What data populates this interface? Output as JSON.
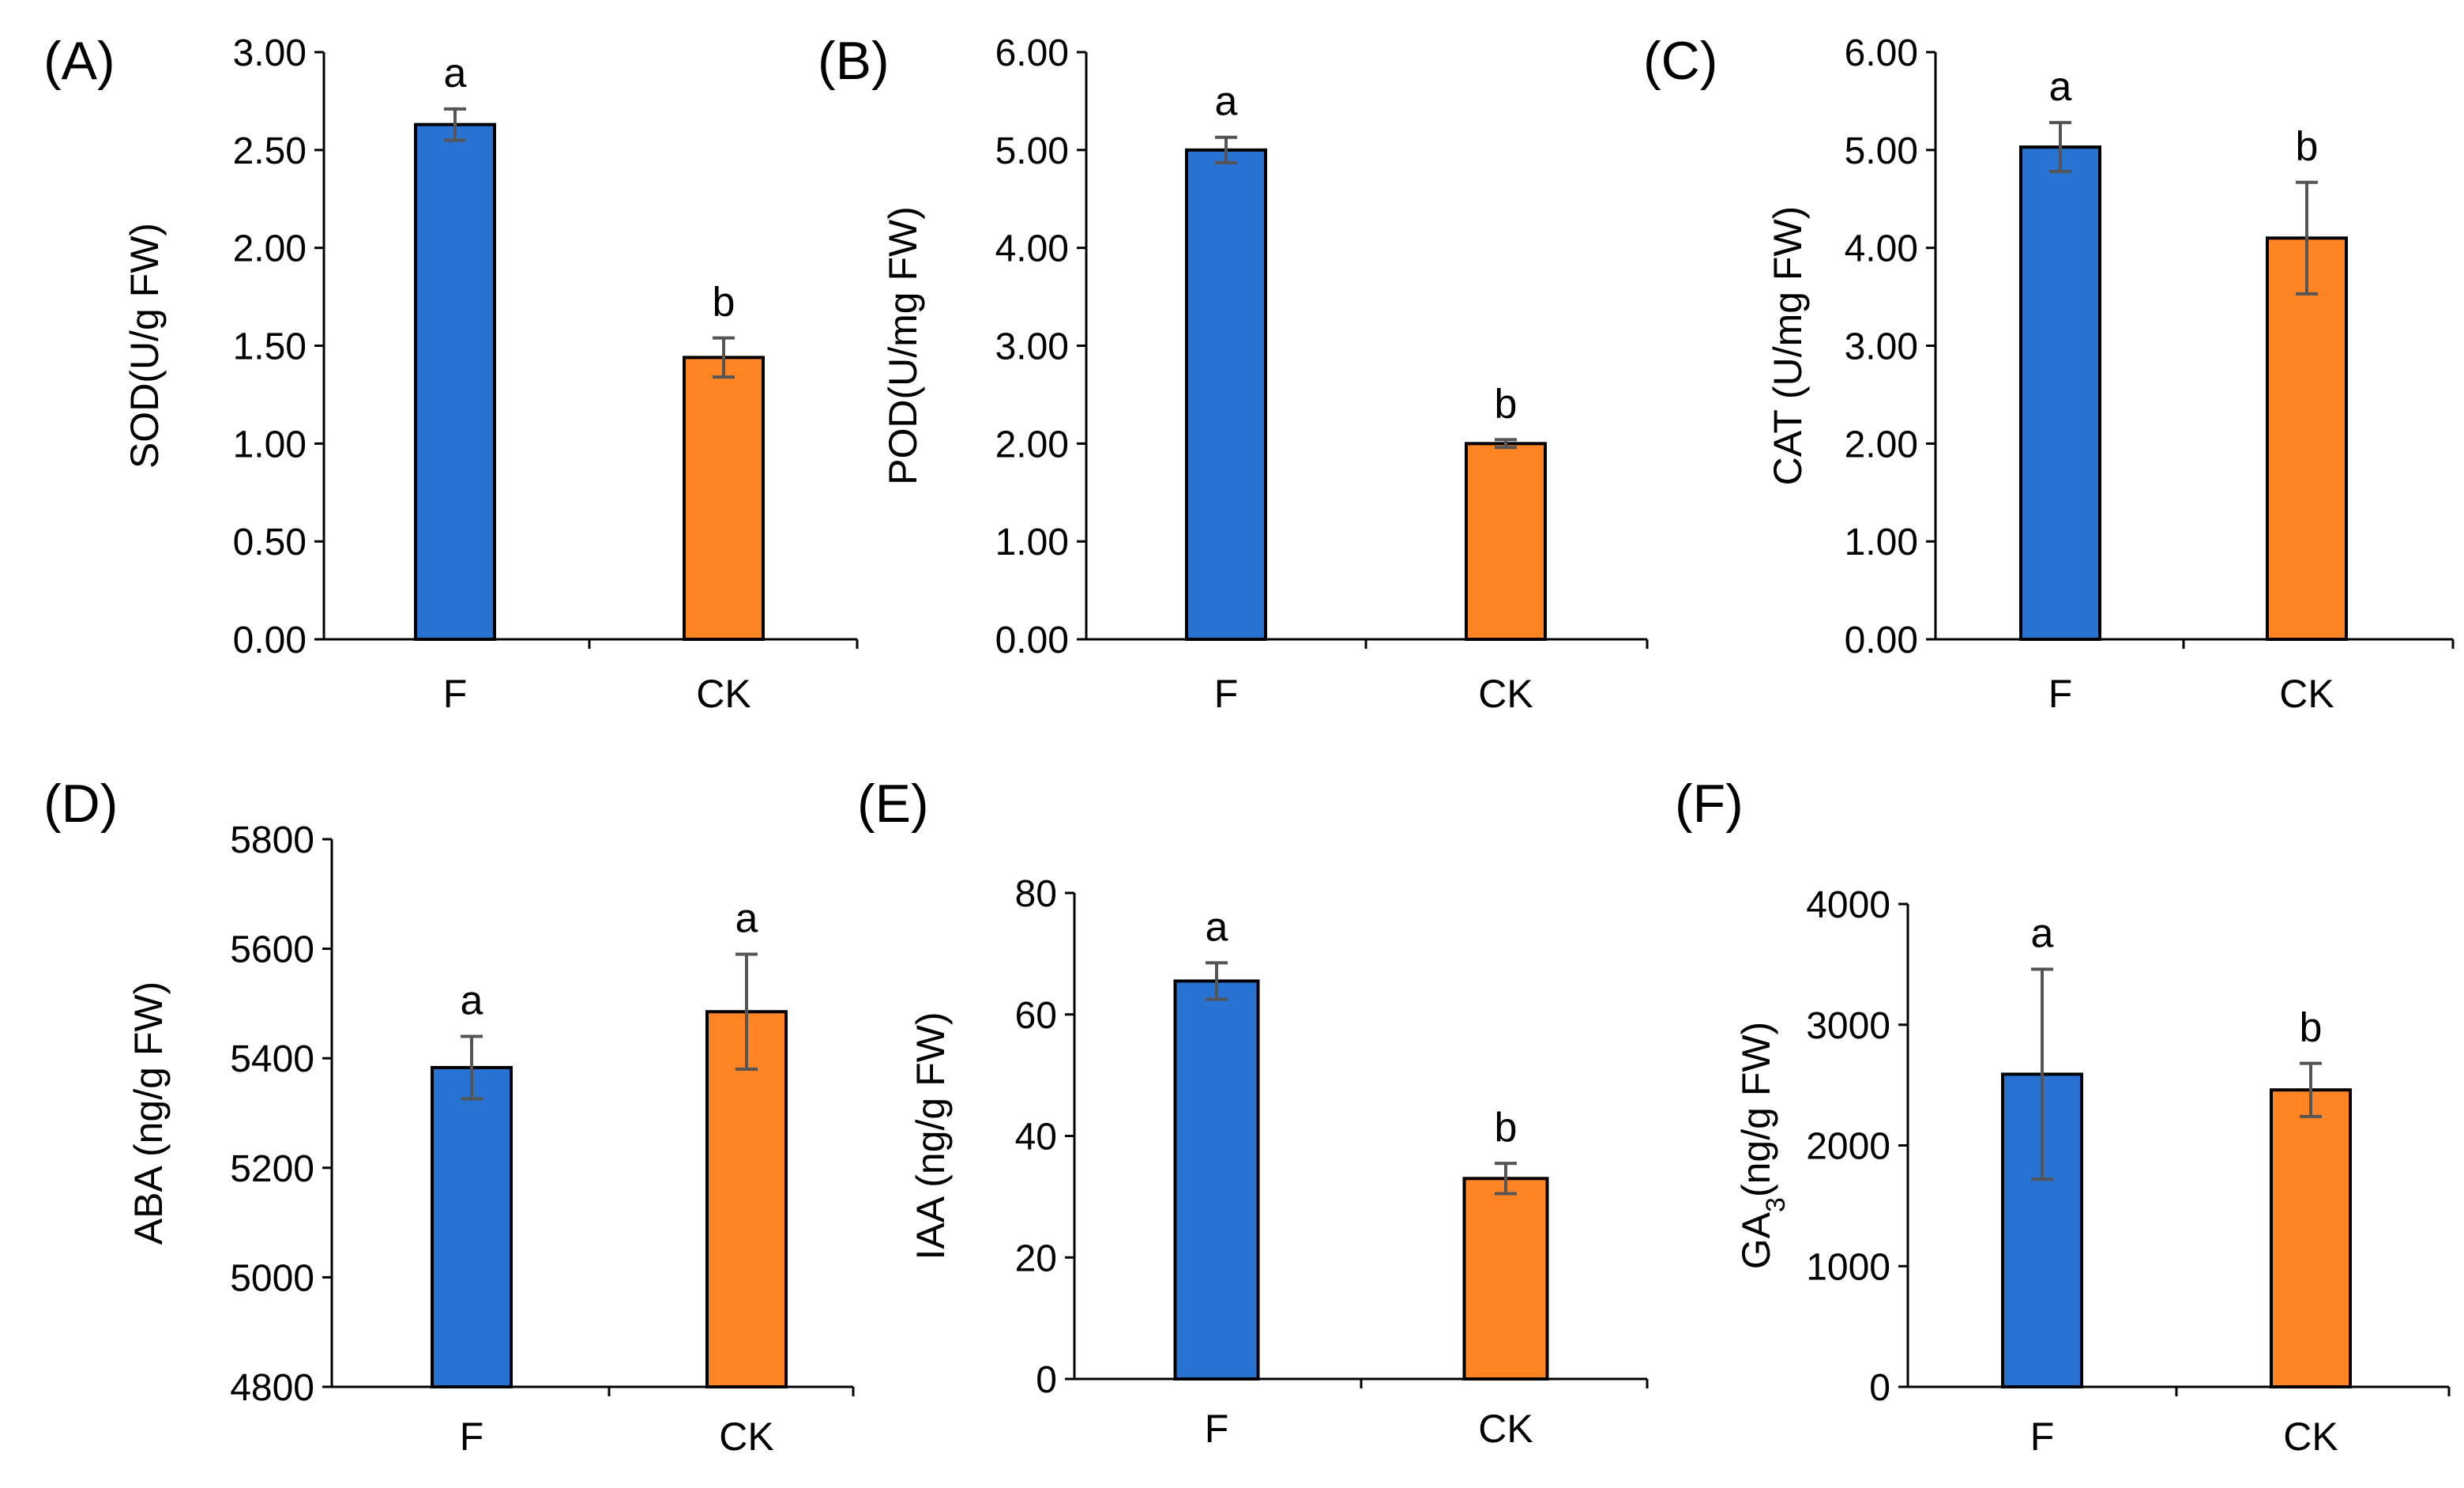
{
  "colors": {
    "F": "#2873d1",
    "CK": "#ff8423"
  },
  "chart_data": [
    {
      "panel": "(A)",
      "type": "bar",
      "ylabel": "SOD(U/g FW)",
      "ylabel_sub": "",
      "ylabel_post": "",
      "ylim": [
        0,
        3
      ],
      "yticks": [
        "0.00",
        "0.50",
        "1.00",
        "1.50",
        "2.00",
        "2.50",
        "3.00"
      ],
      "categories": [
        "F",
        "CK"
      ],
      "values": [
        2.63,
        1.44
      ],
      "errors": [
        0.08,
        0.1
      ],
      "letters": [
        "a",
        "b"
      ]
    },
    {
      "panel": "(B)",
      "type": "bar",
      "ylabel": "POD(U/mg FW)",
      "ylabel_sub": "",
      "ylabel_post": "",
      "ylim": [
        0,
        6
      ],
      "yticks": [
        "0.00",
        "1.00",
        "2.00",
        "3.00",
        "4.00",
        "5.00",
        "6.00"
      ],
      "categories": [
        "F",
        "CK"
      ],
      "values": [
        5.0,
        2.0
      ],
      "errors": [
        0.13,
        0.04
      ],
      "letters": [
        "a",
        "b"
      ]
    },
    {
      "panel": "(C)",
      "type": "bar",
      "ylabel": "CAT (U/mg FW)",
      "ylabel_sub": "",
      "ylabel_post": "",
      "ylim": [
        0,
        6
      ],
      "yticks": [
        "0.00",
        "1.00",
        "2.00",
        "3.00",
        "4.00",
        "5.00",
        "6.00"
      ],
      "categories": [
        "F",
        "CK"
      ],
      "values": [
        5.03,
        4.1
      ],
      "errors": [
        0.25,
        0.57
      ],
      "letters": [
        "a",
        "b"
      ]
    },
    {
      "panel": "(D)",
      "type": "bar",
      "ylabel": "ABA (ng/g FW)",
      "ylabel_sub": "",
      "ylabel_post": "",
      "ylim": [
        4800,
        5800
      ],
      "yticks": [
        "4800",
        "5000",
        "5200",
        "5400",
        "5600",
        "5800"
      ],
      "categories": [
        "F",
        "CK"
      ],
      "values": [
        5383,
        5485
      ],
      "errors": [
        57,
        105
      ],
      "letters": [
        "a",
        "a"
      ]
    },
    {
      "panel": "(E)",
      "type": "bar",
      "ylabel": "IAA (ng/g FW)",
      "ylabel_sub": "",
      "ylabel_post": "",
      "ylim": [
        0,
        80
      ],
      "yticks": [
        "0",
        "20",
        "40",
        "60",
        "80"
      ],
      "categories": [
        "F",
        "CK"
      ],
      "values": [
        65.5,
        33
      ],
      "errors": [
        3,
        2.5
      ],
      "letters": [
        "a",
        "b"
      ]
    },
    {
      "panel": "(F)",
      "type": "bar",
      "ylabel": "GA",
      "ylabel_sub": "3",
      "ylabel_post": "(ng/g FW)",
      "ylim": [
        0,
        4000
      ],
      "yticks": [
        "0",
        "1000",
        "2000",
        "3000",
        "4000"
      ],
      "categories": [
        "F",
        "CK"
      ],
      "values": [
        2590,
        2460
      ],
      "errors": [
        870,
        220
      ],
      "letters": [
        "a",
        "b"
      ]
    }
  ]
}
